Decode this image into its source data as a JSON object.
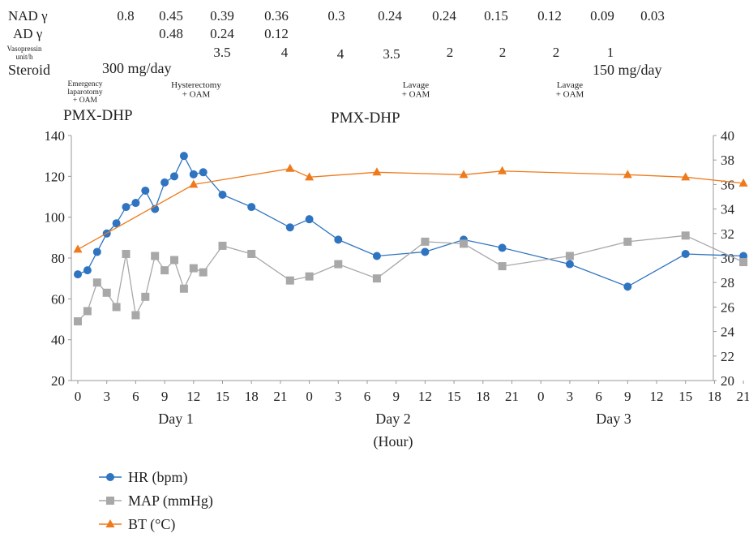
{
  "table": {
    "rows": [
      {
        "label": "NAD γ",
        "values": [
          "0.8",
          "0.45",
          "0.39",
          "0.36",
          "0.3",
          "0.24",
          "0.24",
          "0.15",
          "0.12",
          "0.09",
          "0.03"
        ]
      },
      {
        "label": "AD γ",
        "values": [
          "0.48",
          "0.24",
          "0.12"
        ]
      },
      {
        "label": "Vasopressin unit/h",
        "values": [
          "3.5",
          "4",
          "4",
          "3.5",
          "2",
          "2",
          "2",
          "1"
        ]
      },
      {
        "label": "Steroid",
        "values": [
          "300 mg/day",
          "150 mg/day"
        ]
      }
    ]
  },
  "procedures": [
    {
      "label": "Emergency laparotomy + OAM"
    },
    {
      "label": "Hysterectomy + OAM"
    },
    {
      "label": "Lavage + OAM"
    },
    {
      "label": "Lavage + OAM"
    }
  ],
  "pmx": [
    "PMX-DHP",
    "PMX-DHP"
  ],
  "chart_data": {
    "type": "line",
    "xlabel": "(Hour)",
    "x_tick_labels": [
      "0",
      "3",
      "6",
      "9",
      "12",
      "15",
      "18",
      "21",
      "0",
      "3",
      "6",
      "9",
      "12",
      "15",
      "18",
      "21",
      "0",
      "3",
      "6",
      "9",
      "12",
      "15",
      "18",
      "21"
    ],
    "day_labels": [
      "Day 1",
      "Day 2",
      "Day 3"
    ],
    "left_axis": {
      "ylim": [
        20,
        140
      ],
      "ticks": [
        20,
        40,
        60,
        80,
        100,
        120,
        140
      ]
    },
    "right_axis": {
      "ylim": [
        20,
        40
      ],
      "ticks": [
        20,
        22,
        24,
        26,
        28,
        30,
        32,
        34,
        36,
        38,
        40
      ]
    },
    "series": [
      {
        "name": "HR (bpm)",
        "color": "#2f74c0",
        "marker": "circle",
        "axis": "left",
        "x": [
          0,
          1,
          2,
          3,
          4,
          5,
          6,
          7,
          8,
          9,
          10,
          11,
          12,
          13,
          15,
          18,
          22,
          24,
          27,
          31,
          36,
          40,
          44,
          51,
          57,
          63,
          69
        ],
        "y": [
          72,
          74,
          83,
          92,
          97,
          105,
          107,
          113,
          104,
          117,
          120,
          130,
          121,
          122,
          111,
          105,
          95,
          99,
          89,
          81,
          83,
          89,
          85,
          77,
          66,
          82,
          81
        ]
      },
      {
        "name": "MAP (mmHg)",
        "color": "#a8a8a8",
        "marker": "square",
        "axis": "left",
        "x": [
          0,
          1,
          2,
          3,
          4,
          5,
          6,
          7,
          8,
          9,
          10,
          11,
          12,
          13,
          15,
          18,
          22,
          24,
          27,
          31,
          36,
          40,
          44,
          51,
          57,
          63,
          69
        ],
        "y": [
          49,
          54,
          68,
          63,
          56,
          82,
          52,
          61,
          81,
          74,
          79,
          65,
          75,
          73,
          86,
          82,
          69,
          71,
          77,
          70,
          88,
          87,
          76,
          81,
          88,
          91,
          78
        ]
      },
      {
        "name": "BT (°C)",
        "color": "#ee7a1b",
        "marker": "triangle",
        "axis": "right",
        "x": [
          0,
          12,
          22,
          24,
          31,
          40,
          44,
          57,
          63,
          69
        ],
        "y": [
          30.7,
          36.0,
          37.3,
          36.6,
          37.0,
          36.8,
          37.1,
          36.8,
          36.6,
          36.1
        ]
      }
    ],
    "legend_placement": "bottom-left"
  }
}
